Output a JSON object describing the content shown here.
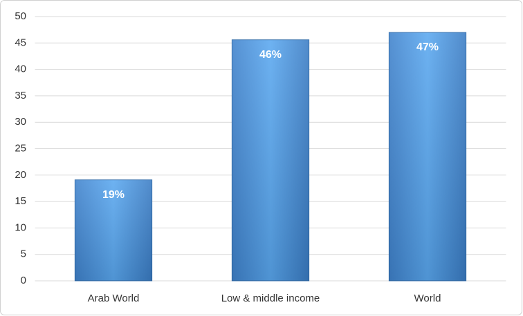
{
  "chart_data": {
    "type": "bar",
    "categories": [
      "Arab World",
      "Low & middle income",
      "World"
    ],
    "values": [
      19.1,
      45.6,
      47.0
    ],
    "value_labels": [
      "19%",
      "46%",
      "47%"
    ],
    "color": "#4a90e2",
    "ylim": [
      0,
      50
    ],
    "yticks": [
      0,
      5,
      10,
      15,
      20,
      25,
      30,
      35,
      40,
      45,
      50
    ],
    "grid": true
  }
}
